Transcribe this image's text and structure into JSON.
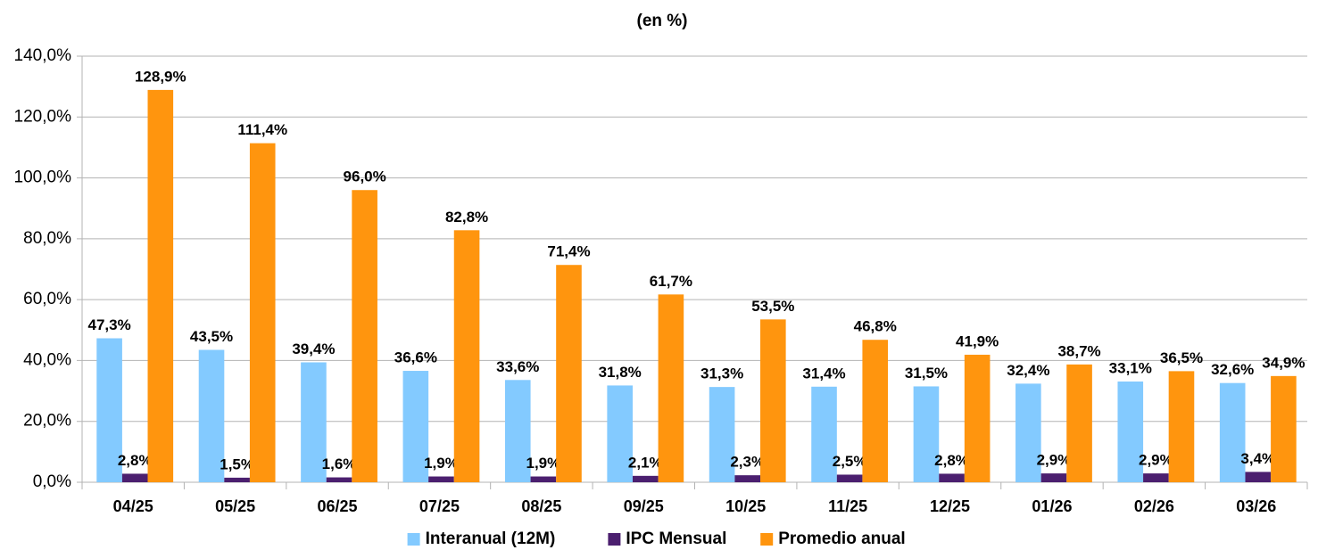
{
  "chart_data": {
    "type": "bar",
    "title": "(en %)",
    "categories": [
      "04/25",
      "05/25",
      "06/25",
      "07/25",
      "08/25",
      "09/25",
      "10/25",
      "11/25",
      "12/25",
      "01/26",
      "02/26",
      "03/26"
    ],
    "series": [
      {
        "name": "Interanual (12M)",
        "color": "#83caff",
        "values": [
          47.3,
          43.5,
          39.4,
          36.6,
          33.6,
          31.8,
          31.3,
          31.4,
          31.5,
          32.4,
          33.1,
          32.6
        ],
        "value_labels": [
          "47,3%",
          "43,5%",
          "39,4%",
          "36,6%",
          "33,6%",
          "31,8%",
          "31,3%",
          "31,4%",
          "31,5%",
          "32,4%",
          "33,1%",
          "32,6%"
        ]
      },
      {
        "name": "IPC Mensual",
        "color": "#4b1f6f",
        "values": [
          2.8,
          1.5,
          1.6,
          1.9,
          1.9,
          2.1,
          2.3,
          2.5,
          2.8,
          2.9,
          2.9,
          3.4
        ],
        "value_labels": [
          "2,8%",
          "1,5%",
          "1,6%",
          "1,9%",
          "1,9%",
          "2,1%",
          "2,3%",
          "2,5%",
          "2,8%",
          "2,9%",
          "2,9%",
          "3,4%"
        ]
      },
      {
        "name": "Promedio anual",
        "color": "#ff950e",
        "values": [
          128.9,
          111.4,
          96.0,
          82.8,
          71.4,
          61.7,
          53.5,
          46.8,
          41.9,
          38.7,
          36.5,
          34.9
        ],
        "value_labels": [
          "128,9%",
          "111,4%",
          "96,0%",
          "82,8%",
          "71,4%",
          "61,7%",
          "53,5%",
          "46,8%",
          "41,9%",
          "38,7%",
          "36,5%",
          "34,9%"
        ]
      }
    ],
    "ylim": [
      0,
      140
    ],
    "yticks": [
      {
        "value": 0,
        "label": "0,0%"
      },
      {
        "value": 20,
        "label": "20,0%"
      },
      {
        "value": 40,
        "label": "40,0%"
      },
      {
        "value": 60,
        "label": "60,0%"
      },
      {
        "value": 80,
        "label": "80,0%"
      },
      {
        "value": 100,
        "label": "100,0%"
      },
      {
        "value": 120,
        "label": "120,0%"
      },
      {
        "value": 140,
        "label": "140,0%"
      }
    ],
    "grid": true,
    "legend": "bottom"
  }
}
